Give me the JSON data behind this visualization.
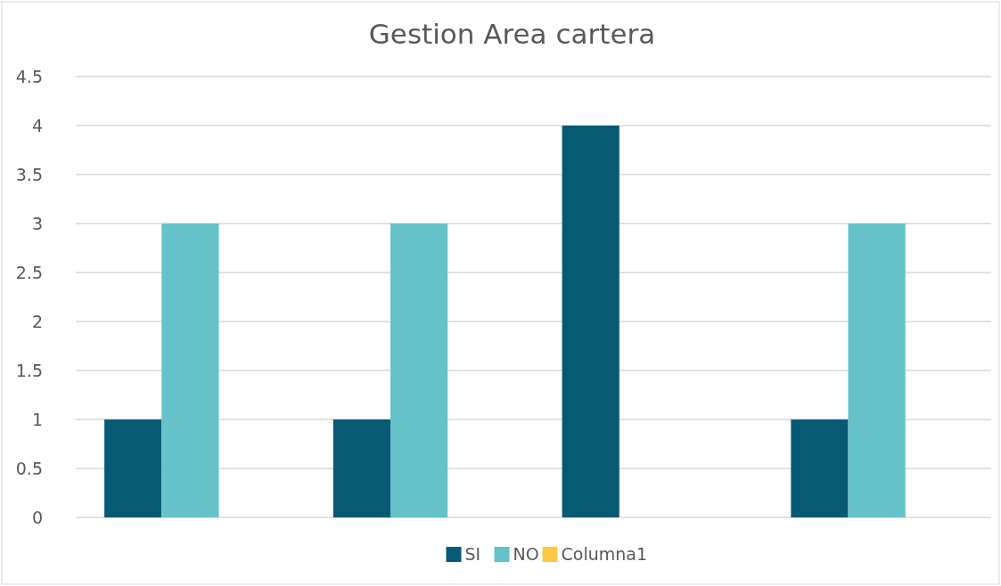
{
  "chart_data": {
    "type": "bar",
    "title": "Gestion Area cartera",
    "categories": [
      null,
      null,
      null,
      null
    ],
    "series": [
      {
        "name": "SI",
        "color": "#065a73",
        "values": [
          1,
          1,
          4,
          1
        ]
      },
      {
        "name": "NO",
        "color": "#65c2c9",
        "values": [
          3,
          3,
          null,
          3
        ]
      },
      {
        "name": "Columna1",
        "color": "#ffc843",
        "values": [
          null,
          null,
          null,
          null
        ]
      }
    ],
    "ylim": [
      0,
      4.5
    ],
    "yticks": [
      0,
      0.5,
      1,
      1.5,
      2,
      2.5,
      3,
      3.5,
      4,
      4.5
    ],
    "grid": "y",
    "legend": "bottom"
  }
}
